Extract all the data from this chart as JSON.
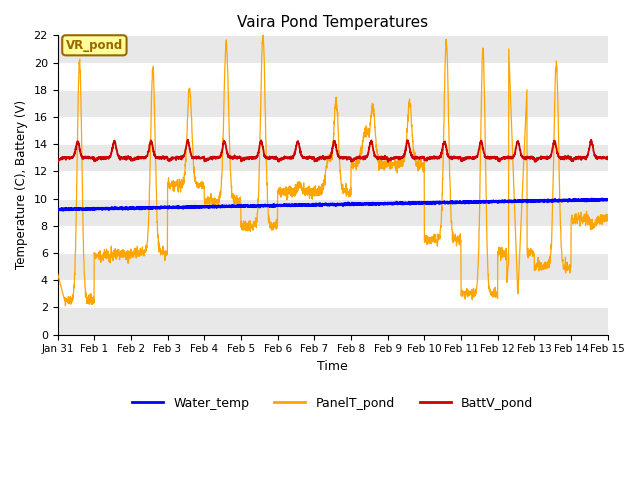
{
  "title": "Vaira Pond Temperatures",
  "xlabel": "Time",
  "ylabel": "Temperature (C), Battery (V)",
  "ylim": [
    0,
    22
  ],
  "yticks": [
    0,
    2,
    4,
    6,
    8,
    10,
    12,
    14,
    16,
    18,
    20,
    22
  ],
  "xtick_labels": [
    "Jan 31",
    "Feb 1",
    "Feb 2",
    "Feb 3",
    "Feb 4",
    "Feb 5",
    "Feb 6",
    "Feb 7",
    "Feb 8",
    "Feb 9",
    "Feb 10",
    "Feb 11",
    "Feb 12",
    "Feb 13",
    "Feb 14",
    "Feb 15"
  ],
  "water_temp_color": "#0000ff",
  "panel_temp_color": "#ffa500",
  "batt_color": "#cc0000",
  "annotation_text": "VR_pond",
  "annotation_bg": "#ffff99",
  "annotation_edge": "#996600",
  "plot_bg": "#ffffff",
  "grid_band_color": "#e8e8e8",
  "legend_labels": [
    "Water_temp",
    "PanelT_pond",
    "BattV_pond"
  ]
}
